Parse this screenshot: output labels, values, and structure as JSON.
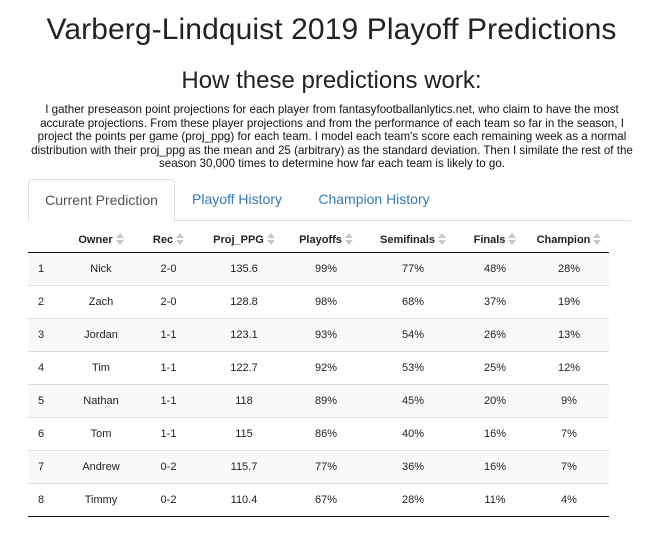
{
  "title": "Varberg-Lindquist 2019 Playoff Predictions",
  "subtitle": "How these predictions work:",
  "description": "I gather preseason point projections for each player from fantasyfootballanlytics.net, who claim to have the most accurate projections. From these player projections and from the performance of each team so far in the season, I project the points per game (proj_ppg) for each team. I model each team's score each remaining week as a normal distribution with their proj_ppg as the mean and 25 (arbitrary) as the standard deviation. Then I similate the rest of the season 30,000 times to determine how far each team is likely to go.",
  "tabs": [
    {
      "label": "Current Prediction",
      "active": true
    },
    {
      "label": "Playoff History",
      "active": false
    },
    {
      "label": "Champion History",
      "active": false
    }
  ],
  "table": {
    "columns": [
      "",
      "Owner",
      "Rec",
      "Proj_PPG",
      "Playoffs",
      "Semifinals",
      "Finals",
      "Champion"
    ],
    "rows": [
      [
        "1",
        "Nick",
        "2-0",
        "135.6",
        "99%",
        "77%",
        "48%",
        "28%"
      ],
      [
        "2",
        "Zach",
        "2-0",
        "128.8",
        "98%",
        "68%",
        "37%",
        "19%"
      ],
      [
        "3",
        "Jordan",
        "1-1",
        "123.1",
        "93%",
        "54%",
        "26%",
        "13%"
      ],
      [
        "4",
        "Tim",
        "1-1",
        "122.7",
        "92%",
        "53%",
        "25%",
        "12%"
      ],
      [
        "5",
        "Nathan",
        "1-1",
        "118",
        "89%",
        "45%",
        "20%",
        "9%"
      ],
      [
        "6",
        "Tom",
        "1-1",
        "115",
        "86%",
        "40%",
        "16%",
        "7%"
      ],
      [
        "7",
        "Andrew",
        "0-2",
        "115.7",
        "77%",
        "36%",
        "16%",
        "7%"
      ],
      [
        "8",
        "Timmy",
        "0-2",
        "110.4",
        "67%",
        "28%",
        "11%",
        "4%"
      ]
    ]
  },
  "colors": {
    "link": "#337ab7",
    "stripe": "#f9f9f9",
    "border": "#dddddd"
  }
}
